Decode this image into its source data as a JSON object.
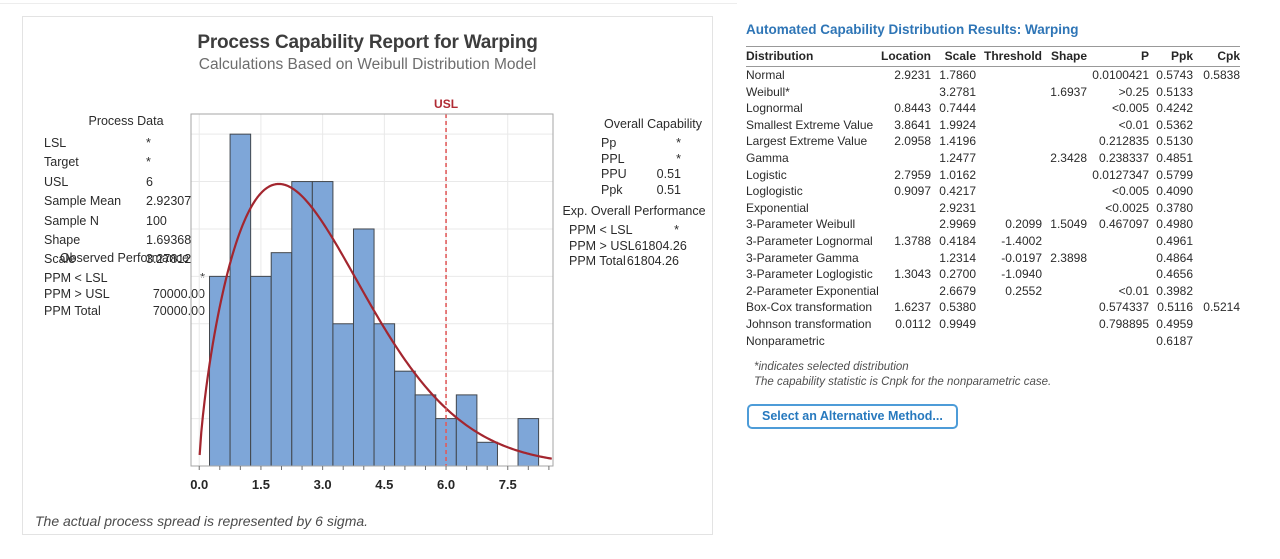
{
  "colors": {
    "bar_fill": "#7ea6d8",
    "bar_stroke": "#42474d",
    "fit_curve": "#a3262f",
    "spec_line": "#e05c5c",
    "spec_label": "#b02a33",
    "grid": "#e9e9e9",
    "frame": "#a6a6a6",
    "tick": "#707070",
    "accent_blue": "#2e75b6",
    "button_border": "#4d9cd8"
  },
  "chart_data": {
    "type": "bar",
    "title": "Process Capability Report for Warping",
    "subtitle": "Calculations Based on Weibull Distribution Model",
    "bin_width": 0.5,
    "bin_centers": [
      0.5,
      1.0,
      1.5,
      2.0,
      2.5,
      3.0,
      3.5,
      4.0,
      4.5,
      5.0,
      5.5,
      6.0,
      6.5,
      7.0,
      7.5,
      8.0
    ],
    "values": [
      8,
      14,
      8,
      9,
      12,
      12,
      6,
      10,
      6,
      4,
      3,
      2,
      3,
      1,
      0,
      2
    ],
    "xlim": [
      -0.2,
      8.6
    ],
    "ylim": [
      0,
      14.85
    ],
    "x_tick_values": [
      0,
      1.5,
      3,
      4.5,
      6,
      7.5
    ],
    "x_tick_labels": [
      "0.0",
      "1.5",
      "3.0",
      "4.5",
      "6.0",
      "7.5"
    ],
    "x_minor_tick_step": 0.5,
    "y_grid_step": 2,
    "grid": true,
    "legend": "none",
    "spec_limit": {
      "label": "USL",
      "value": 6
    },
    "fit_curve": {
      "distribution": "weibull",
      "shape": 1.69368,
      "scale": 3.27812,
      "sample_n": 100,
      "scale_factor": 50
    }
  },
  "left_panel": {
    "process_data": {
      "heading": "Process Data",
      "rows": [
        [
          "LSL",
          "*"
        ],
        [
          "Target",
          "*"
        ],
        [
          "USL",
          "6"
        ],
        [
          "Sample Mean",
          "2.92307"
        ],
        [
          "Sample N",
          "100"
        ],
        [
          "Shape",
          "1.69368"
        ],
        [
          "Scale",
          "3.27812"
        ]
      ]
    },
    "observed_performance": {
      "heading": "Observed Performance",
      "rows": [
        [
          "PPM < LSL",
          "*"
        ],
        [
          "PPM > USL",
          "70000.00"
        ],
        [
          "PPM Total",
          "70000.00"
        ]
      ]
    },
    "overall_capability": {
      "heading": "Overall Capability",
      "rows": [
        [
          "Pp",
          "*"
        ],
        [
          "PPL",
          "*"
        ],
        [
          "PPU",
          "0.51"
        ],
        [
          "Ppk",
          "0.51"
        ]
      ]
    },
    "exp_overall_performance": {
      "heading": "Exp. Overall Performance",
      "rows": [
        [
          "PPM < LSL",
          "*"
        ],
        [
          "PPM > USL",
          "61804.26"
        ],
        [
          "PPM Total",
          "61804.26"
        ]
      ]
    },
    "footer_note": "The actual process spread is represented by 6 sigma."
  },
  "right_panel": {
    "title": "Automated Capability Distribution Results: Warping",
    "table": {
      "columns": [
        "Distribution",
        "Location",
        "Scale",
        "Threshold",
        "Shape",
        "P",
        "Ppk",
        "Cpk"
      ],
      "rows": [
        [
          "Normal",
          "2.9231",
          "1.7860",
          "",
          "",
          "0.0100421",
          "0.5743",
          "0.5838"
        ],
        [
          "Weibull*",
          "",
          "3.2781",
          "",
          "1.6937",
          ">0.25",
          "0.5133",
          ""
        ],
        [
          "Lognormal",
          "0.8443",
          "0.7444",
          "",
          "",
          "<0.005",
          "0.4242",
          ""
        ],
        [
          "Smallest Extreme Value",
          "3.8641",
          "1.9924",
          "",
          "",
          "<0.01",
          "0.5362",
          ""
        ],
        [
          "Largest Extreme Value",
          "2.0958",
          "1.4196",
          "",
          "",
          "0.212835",
          "0.5130",
          ""
        ],
        [
          "Gamma",
          "",
          "1.2477",
          "",
          "2.3428",
          "0.238337",
          "0.4851",
          ""
        ],
        [
          "Logistic",
          "2.7959",
          "1.0162",
          "",
          "",
          "0.0127347",
          "0.5799",
          ""
        ],
        [
          "Loglogistic",
          "0.9097",
          "0.4217",
          "",
          "",
          "<0.005",
          "0.4090",
          ""
        ],
        [
          "Exponential",
          "",
          "2.9231",
          "",
          "",
          "<0.0025",
          "0.3780",
          ""
        ],
        [
          "3-Parameter Weibull",
          "",
          "2.9969",
          "0.2099",
          "1.5049",
          "0.467097",
          "0.4980",
          ""
        ],
        [
          "3-Parameter Lognormal",
          "1.3788",
          "0.4184",
          "-1.4002",
          "",
          "",
          "0.4961",
          ""
        ],
        [
          "3-Parameter Gamma",
          "",
          "1.2314",
          "-0.0197",
          "2.3898",
          "",
          "0.4864",
          ""
        ],
        [
          "3-Parameter Loglogistic",
          "1.3043",
          "0.2700",
          "-1.0940",
          "",
          "",
          "0.4656",
          ""
        ],
        [
          "2-Parameter Exponential",
          "",
          "2.6679",
          "0.2552",
          "",
          "<0.01",
          "0.3982",
          ""
        ],
        [
          "Box-Cox transformation",
          "1.6237",
          "0.5380",
          "",
          "",
          "0.574337",
          "0.5116",
          "0.5214"
        ],
        [
          "Johnson transformation",
          "0.0112",
          "0.9949",
          "",
          "",
          "0.798895",
          "0.4959",
          ""
        ],
        [
          "Nonparametric",
          "",
          "",
          "",
          "",
          "",
          "0.6187",
          ""
        ]
      ]
    },
    "footnotes": [
      "*indicates selected distribution",
      "The capability statistic is Cnpk for the nonparametric case."
    ],
    "button_label": "Select an Alternative Method..."
  }
}
